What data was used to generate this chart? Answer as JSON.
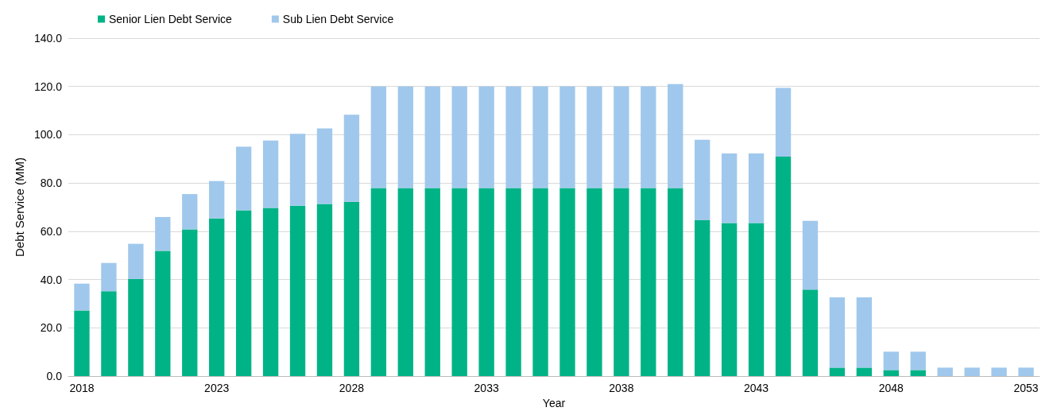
{
  "chart_data": {
    "type": "bar",
    "stacked": true,
    "xlabel": "Year",
    "ylabel": "Debt Service (MM)",
    "categories": [
      "2018",
      null,
      null,
      null,
      null,
      "2023",
      null,
      null,
      null,
      null,
      "2028",
      null,
      null,
      null,
      null,
      "2033",
      null,
      null,
      null,
      null,
      "2038",
      null,
      null,
      null,
      null,
      "2043",
      null,
      null,
      null,
      null,
      "2048",
      null,
      null,
      null,
      null,
      "2053"
    ],
    "series": [
      {
        "name": "Senior Lien Debt Service",
        "color": "#00b386",
        "values": [
          27.2,
          35.2,
          40.2,
          51.9,
          60.8,
          65.3,
          68.7,
          69.7,
          70.6,
          71.3,
          72.2,
          77.9,
          77.9,
          77.9,
          77.9,
          77.9,
          77.9,
          77.9,
          77.9,
          77.9,
          77.9,
          77.9,
          77.9,
          64.6,
          63.4,
          63.4,
          90.9,
          35.8,
          3.5,
          3.5,
          2.5,
          2.5,
          0,
          0,
          0,
          0
        ]
      },
      {
        "name": "Sub Lien Debt Service",
        "color": "#a0c8ec",
        "values": [
          11.1,
          11.7,
          14.6,
          14.0,
          14.6,
          15.5,
          26.3,
          27.9,
          29.8,
          31.3,
          36.1,
          42.1,
          42.1,
          42.1,
          42.1,
          42.1,
          42.1,
          42.1,
          42.1,
          42.1,
          42.1,
          42.1,
          43.1,
          33.3,
          28.8,
          28.8,
          28.5,
          28.5,
          29.1,
          29.1,
          7.6,
          7.6,
          3.5,
          3.5,
          3.5,
          3.5
        ]
      }
    ],
    "ylim": [
      0,
      140
    ],
    "yticks": [
      {
        "value": 0,
        "label": "0.0"
      },
      {
        "value": 20,
        "label": "20.0"
      },
      {
        "value": 40,
        "label": "40.0"
      },
      {
        "value": 60,
        "label": "60.0"
      },
      {
        "value": 80,
        "label": "80.0"
      },
      {
        "value": 100,
        "label": "100.0"
      },
      {
        "value": 120,
        "label": "120.0"
      },
      {
        "value": 140,
        "label": "140.0"
      }
    ],
    "grid": "y",
    "legend": "top left"
  }
}
